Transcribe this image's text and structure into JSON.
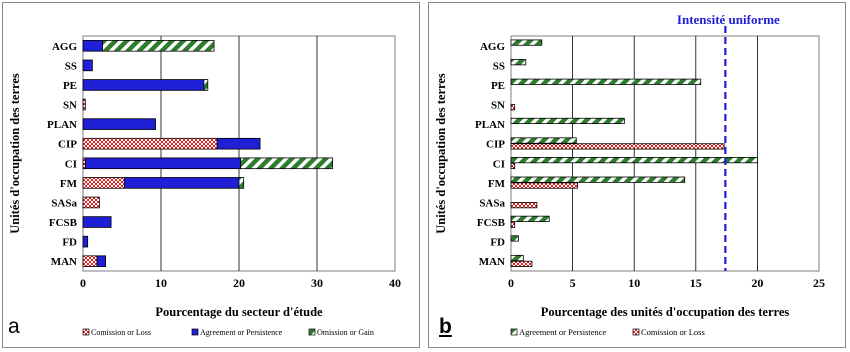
{
  "chart_data": [
    {
      "panel_label": "a",
      "type": "bar",
      "orientation": "horizontal",
      "stacked": true,
      "categories": [
        "AGG",
        "SS",
        "PE",
        "SN",
        "PLAN",
        "CIP",
        "CI",
        "FM",
        "SASa",
        "FCSB",
        "FD",
        "MAN"
      ],
      "series": [
        {
          "name": "Comission or Loss",
          "color": "#e02020",
          "values": [
            0,
            0,
            0,
            0.3,
            0,
            17.2,
            0.3,
            5.3,
            2.1,
            0,
            0,
            1.8
          ]
        },
        {
          "name": "Agreement or Persistence",
          "color": "#1f1fd6",
          "values": [
            2.5,
            1.2,
            15.5,
            0,
            9.3,
            5.5,
            19.9,
            14.7,
            0,
            3.6,
            0.6,
            1.1
          ]
        },
        {
          "name": "Omission or Gain",
          "color": "#2e7d2e",
          "values": [
            14.3,
            0,
            0.5,
            0,
            0,
            0,
            11.8,
            0.6,
            0,
            0,
            0,
            0
          ]
        }
      ],
      "ylabel": "Unités d'occupation des terres",
      "xlabel": "Pourcentage du secteur d'étude",
      "xlim": [
        0,
        40
      ],
      "xticks": [
        "0",
        "10",
        "20",
        "30",
        "40"
      ],
      "grid": "vertical",
      "legend_position": "bottom"
    },
    {
      "panel_label": "b",
      "type": "bar",
      "orientation": "horizontal",
      "stacked": false,
      "categories": [
        "AGG",
        "SS",
        "PE",
        "SN",
        "PLAN",
        "CIP",
        "CI",
        "FM",
        "SASa",
        "FCSB",
        "FD",
        "MAN"
      ],
      "series": [
        {
          "name": "Agreement or Persistence",
          "color": "#2e7d2e",
          "values": [
            2.5,
            1.2,
            15.4,
            0,
            9.2,
            5.3,
            20.0,
            14.1,
            0,
            3.1,
            0.6,
            1.0
          ]
        },
        {
          "name": "Comission or Loss",
          "color": "#e02020",
          "values": [
            0,
            0,
            0,
            0.3,
            0,
            17.3,
            0.3,
            5.4,
            2.1,
            0.3,
            0,
            1.7
          ]
        }
      ],
      "ylabel": "Unités d'occupation des terres",
      "xlabel": "Pourcentage des unités d'occupation des terres",
      "xlim": [
        0,
        25
      ],
      "xticks": [
        "0",
        "5",
        "10",
        "15",
        "20",
        "25"
      ],
      "reference_line": {
        "label": "Intensité uniforme",
        "value": 17.4,
        "color": "#1f1fd6"
      },
      "grid": "vertical",
      "legend_position": "bottom"
    }
  ]
}
